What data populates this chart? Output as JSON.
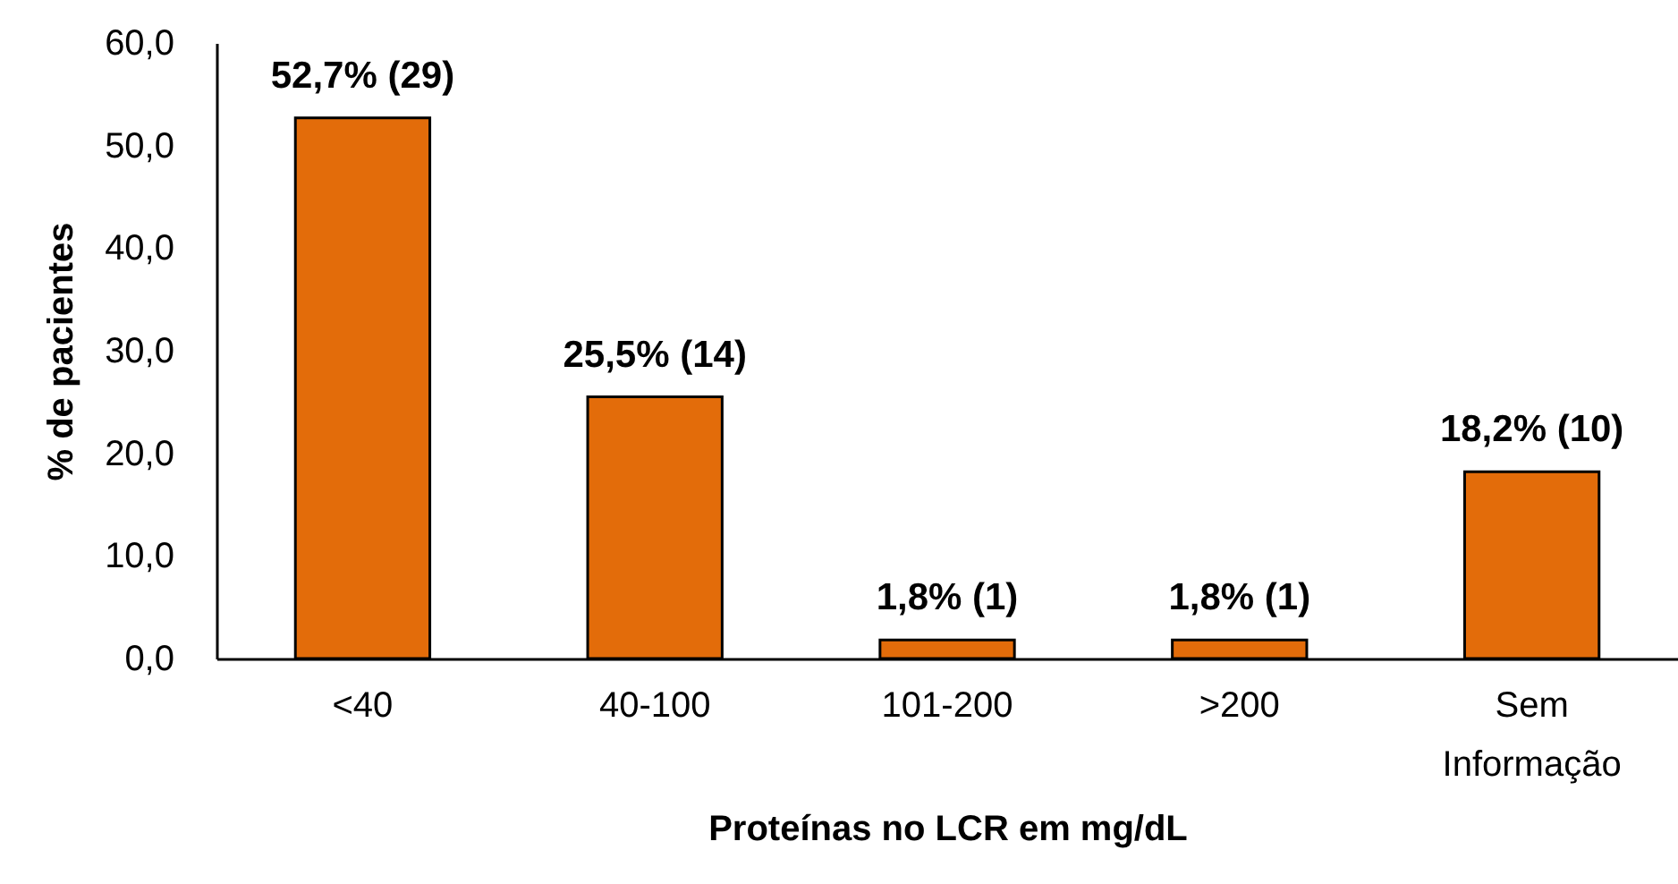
{
  "chart_data": {
    "type": "bar",
    "xlabel": "Proteínas no LCR em mg/dL",
    "ylabel": "% de pacientes",
    "categories": [
      "<40",
      "40-100",
      "101-200",
      ">200",
      "Sem Informação"
    ],
    "values": [
      52.7,
      25.5,
      1.8,
      1.8,
      18.2
    ],
    "value_labels": [
      "52,7% (29)",
      "25,5% (14)",
      "1,8% (1)",
      "1,8% (1)",
      "18,2% (10)"
    ],
    "color": "#e36c0a",
    "ylim": [
      0,
      60
    ],
    "yticks": [
      {
        "value": 0,
        "label": "0,0"
      },
      {
        "value": 10,
        "label": "10,0"
      },
      {
        "value": 20,
        "label": "20,0"
      },
      {
        "value": 30,
        "label": "30,0"
      },
      {
        "value": 40,
        "label": "40,0"
      },
      {
        "value": 50,
        "label": "50,0"
      },
      {
        "value": 60,
        "label": "60,0"
      }
    ]
  }
}
